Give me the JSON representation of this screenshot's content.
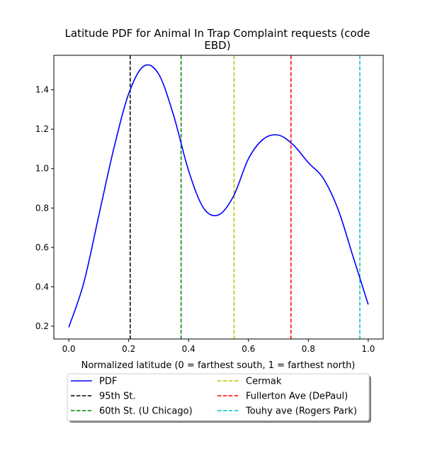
{
  "chart_data": {
    "type": "line",
    "title_line1": "Latitude PDF for Animal In Trap Complaint  requests (code",
    "title_line2": "EBD)",
    "xlabel": "Normalized latitude (0 = farthest south, 1 = farthest north)",
    "ylabel": "",
    "xlim": [
      -0.05,
      1.05
    ],
    "ylim": [
      0.135,
      1.575
    ],
    "xticks": [
      0.0,
      0.2,
      0.4,
      0.6,
      0.8,
      1.0
    ],
    "xtick_labels": [
      "0.0",
      "0.2",
      "0.4",
      "0.6",
      "0.8",
      "1.0"
    ],
    "yticks": [
      0.2,
      0.4,
      0.6,
      0.8,
      1.0,
      1.2,
      1.4
    ],
    "ytick_labels": [
      "0.2",
      "0.4",
      "0.6",
      "0.8",
      "1.0",
      "1.2",
      "1.4"
    ],
    "grid": false,
    "legend_placement": "below plot, two columns",
    "series": [
      {
        "name": "PDF",
        "color": "#0000ff",
        "style": "solid",
        "x": [
          0.0,
          0.05,
          0.1,
          0.15,
          0.2,
          0.25,
          0.3,
          0.35,
          0.4,
          0.45,
          0.5,
          0.55,
          0.6,
          0.65,
          0.7,
          0.75,
          0.8,
          0.85,
          0.9,
          0.95,
          1.0
        ],
        "y": [
          0.195,
          0.42,
          0.76,
          1.1,
          1.38,
          1.52,
          1.48,
          1.27,
          0.99,
          0.8,
          0.765,
          0.86,
          1.05,
          1.15,
          1.17,
          1.12,
          1.03,
          0.95,
          0.79,
          0.55,
          0.31
        ]
      }
    ],
    "reference_lines": [
      {
        "name": "95th St.",
        "x": 0.205,
        "color": "#000000"
      },
      {
        "name": "60th St. (U Chicago)",
        "x": 0.375,
        "color": "#008000"
      },
      {
        "name": "Cermak",
        "x": 0.552,
        "color": "#bfbf00"
      },
      {
        "name": "Fullerton Ave (DePaul)",
        "x": 0.742,
        "color": "#ff0000"
      },
      {
        "name": "Touhy ave (Rogers Park)",
        "x": 0.972,
        "color": "#00bfbf"
      }
    ],
    "legend": [
      {
        "label": "PDF",
        "color": "#0000ff",
        "style": "solid"
      },
      {
        "label": "Cermak",
        "color": "#bfbf00",
        "style": "dashed"
      },
      {
        "label": "95th St.",
        "color": "#000000",
        "style": "dashed"
      },
      {
        "label": "Fullerton Ave (DePaul)",
        "color": "#ff0000",
        "style": "dashed"
      },
      {
        "label": "60th St. (U Chicago)",
        "color": "#008000",
        "style": "dashed"
      },
      {
        "label": "Touhy ave (Rogers Park)",
        "color": "#00bfbf",
        "style": "dashed"
      }
    ]
  }
}
